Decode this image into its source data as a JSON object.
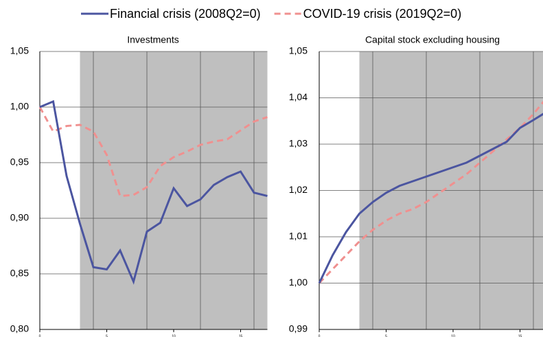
{
  "chart_data": [
    {
      "type": "line",
      "title": "Investments",
      "x": [
        0,
        1,
        2,
        3,
        4,
        5,
        6,
        7,
        8,
        9,
        10,
        11,
        12,
        13,
        14,
        15,
        16,
        17
      ],
      "series": [
        {
          "name": "Financial crisis (2008Q2=0)",
          "color": "#4b55a0",
          "dashed": false,
          "values": [
            1.0,
            1.005,
            0.938,
            0.895,
            0.856,
            0.854,
            0.871,
            0.843,
            0.888,
            0.896,
            0.927,
            0.911,
            0.917,
            0.93,
            0.937,
            0.942,
            0.923,
            0.92
          ]
        },
        {
          "name": "COVID-19 crisis (2019Q2=0)",
          "color": "#f0908f",
          "dashed": true,
          "values": [
            1.0,
            0.978,
            0.983,
            0.984,
            0.978,
            0.957,
            0.92,
            0.921,
            0.928,
            0.947,
            0.955,
            0.96,
            0.966,
            0.969,
            0.971,
            0.979,
            0.987,
            0.991
          ]
        }
      ],
      "xlim": [
        0,
        17
      ],
      "xticks": [
        0,
        5,
        10,
        15
      ],
      "xgrid": [
        4,
        8,
        12,
        16
      ],
      "shaded_from": 3,
      "ylim": [
        0.8,
        1.05
      ],
      "yticks": [
        {
          "value": 0.8,
          "label": "0,80"
        },
        {
          "value": 0.85,
          "label": "0,85"
        },
        {
          "value": 0.9,
          "label": "0,90"
        },
        {
          "value": 0.95,
          "label": "0,95"
        },
        {
          "value": 1.0,
          "label": "1,00"
        },
        {
          "value": 1.05,
          "label": "1,05"
        }
      ],
      "grid": true
    },
    {
      "type": "line",
      "title": "Capital stock excluding housing",
      "x": [
        0,
        1,
        2,
        3,
        4,
        5,
        6,
        7,
        8,
        9,
        10,
        11,
        12,
        13,
        14,
        15,
        16,
        17
      ],
      "series": [
        {
          "color": "#4b55a0",
          "dashed": false,
          "values": [
            1.0,
            1.006,
            1.011,
            1.015,
            1.0175,
            1.0195,
            1.021,
            1.022,
            1.023,
            1.024,
            1.025,
            1.026,
            1.0275,
            1.029,
            1.0305,
            1.0335,
            1.0352,
            1.037
          ]
        },
        {
          "color": "#f0908f",
          "dashed": true,
          "values": [
            1.0,
            1.003,
            1.006,
            1.009,
            1.0115,
            1.0135,
            1.015,
            1.016,
            1.0175,
            1.0195,
            1.0215,
            1.0235,
            1.026,
            1.0285,
            1.031,
            1.0335,
            1.0365,
            1.04
          ]
        }
      ],
      "xlim": [
        0,
        17
      ],
      "xticks": [
        0,
        5,
        10,
        15
      ],
      "xgrid": [
        4,
        8,
        12,
        16
      ],
      "shaded_from": 3,
      "ylim": [
        0.99,
        1.05
      ],
      "yticks": [
        {
          "value": 0.99,
          "label": "0,99"
        },
        {
          "value": 1.0,
          "label": "1,00"
        },
        {
          "value": 1.01,
          "label": "1,01"
        },
        {
          "value": 1.02,
          "label": "1,02"
        },
        {
          "value": 1.03,
          "label": "1,03"
        },
        {
          "value": 1.04,
          "label": "1,04"
        },
        {
          "value": 1.05,
          "label": "1,05"
        }
      ],
      "grid": true
    }
  ]
}
